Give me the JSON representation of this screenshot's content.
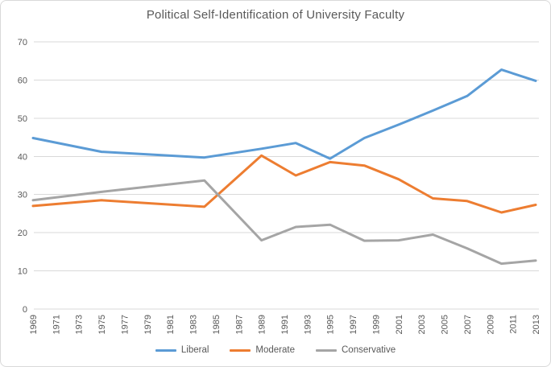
{
  "chart_data": {
    "type": "line",
    "title": "Political Self-Identification of University Faculty",
    "xlabel": "",
    "ylabel": "",
    "x_range": [
      1969,
      2013
    ],
    "x_tick_labels": [
      "1969",
      "1971",
      "1973",
      "1975",
      "1977",
      "1979",
      "1981",
      "1983",
      "1985",
      "1987",
      "1989",
      "1991",
      "1993",
      "1995",
      "1997",
      "1999",
      "2001",
      "2003",
      "2005",
      "2007",
      "2009",
      "2011",
      "2013"
    ],
    "ylim": [
      0,
      70
    ],
    "y_ticks": [
      0,
      10,
      20,
      30,
      40,
      50,
      60,
      70
    ],
    "grid": "horizontal",
    "legend_position": "bottom",
    "gridline_color": "#d9d9d9",
    "text_color": "#595959",
    "survey_years": [
      1969,
      1975,
      1984,
      1989,
      1992,
      1995,
      1998,
      2001,
      2004,
      2007,
      2010,
      2013
    ],
    "series": [
      {
        "name": "Liberal",
        "color": "#5b9bd5",
        "x": [
          1969,
          1975,
          1984,
          1989,
          1992,
          1995,
          1998,
          2001,
          2004,
          2007,
          2010,
          2013
        ],
        "values": [
          44.8,
          41.2,
          39.7,
          42.0,
          43.5,
          39.4,
          44.8,
          48.3,
          52.0,
          55.8,
          62.7,
          59.8
        ]
      },
      {
        "name": "Moderate",
        "color": "#ed7d31",
        "x": [
          1969,
          1975,
          1984,
          1989,
          1992,
          1995,
          1998,
          2001,
          2004,
          2007,
          2010,
          2013
        ],
        "values": [
          27.0,
          28.5,
          26.8,
          40.2,
          35.0,
          38.5,
          37.6,
          34.0,
          29.0,
          28.3,
          25.3,
          27.3
        ]
      },
      {
        "name": "Conservative",
        "color": "#a5a5a5",
        "x": [
          1969,
          1975,
          1984,
          1989,
          1992,
          1995,
          1998,
          2001,
          2004,
          2007,
          2010,
          2013
        ],
        "values": [
          28.5,
          30.7,
          33.7,
          18.0,
          21.5,
          22.1,
          17.9,
          18.0,
          19.5,
          15.9,
          11.9,
          12.7
        ]
      }
    ]
  }
}
